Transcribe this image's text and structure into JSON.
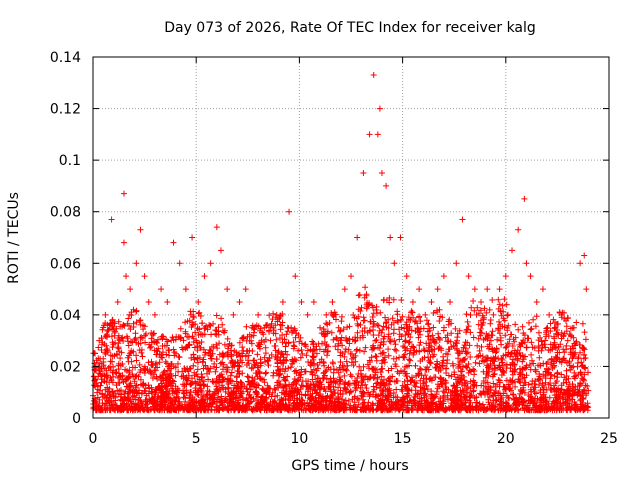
{
  "chart_data": {
    "type": "scatter",
    "title": "Day 073 of 2026, Rate Of TEC Index for receiver kalg",
    "xlabel": "GPS time / hours",
    "ylabel": "ROTI / TECUs",
    "xlim": [
      0,
      25
    ],
    "ylim": [
      0,
      0.14
    ],
    "x_ticks": [
      "0",
      "5",
      "10",
      "15",
      "20",
      "25"
    ],
    "y_ticks": [
      "0",
      "0.02",
      "0.04",
      "0.06",
      "0.08",
      "0.1",
      "0.12",
      "0.14"
    ],
    "grid": true,
    "marker": "+",
    "series": [
      {
        "name": "ROTI",
        "color": "#ff0000",
        "x": [
          0.1,
          0.3,
          0.6,
          0.9,
          1.2,
          1.5,
          1.5,
          1.6,
          1.8,
          2.1,
          2.3,
          2.5,
          2.7,
          3.0,
          3.3,
          3.6,
          3.9,
          4.2,
          4.5,
          4.8,
          5.1,
          5.4,
          5.7,
          6.0,
          6.2,
          6.5,
          6.8,
          7.1,
          7.4,
          7.7,
          8.0,
          8.3,
          8.6,
          8.9,
          9.2,
          9.5,
          9.6,
          9.8,
          10.1,
          10.4,
          10.7,
          11.0,
          11.3,
          11.6,
          11.9,
          12.2,
          12.5,
          12.8,
          13.1,
          13.4,
          13.6,
          13.8,
          13.9,
          14.0,
          14.2,
          14.4,
          14.6,
          14.9,
          15.2,
          15.5,
          15.8,
          16.1,
          16.4,
          16.7,
          17.0,
          17.3,
          17.6,
          17.9,
          18.2,
          18.5,
          18.8,
          19.1,
          19.4,
          19.7,
          20.0,
          20.3,
          20.6,
          20.9,
          21.0,
          21.2,
          21.5,
          21.8,
          22.1,
          22.4,
          22.7,
          23.0,
          23.3,
          23.6,
          23.8,
          23.9
        ],
        "y": [
          0.025,
          0.03,
          0.04,
          0.077,
          0.045,
          0.087,
          0.068,
          0.055,
          0.05,
          0.06,
          0.073,
          0.055,
          0.045,
          0.04,
          0.05,
          0.045,
          0.068,
          0.06,
          0.05,
          0.07,
          0.045,
          0.055,
          0.06,
          0.074,
          0.065,
          0.05,
          0.04,
          0.045,
          0.05,
          0.035,
          0.04,
          0.035,
          0.03,
          0.04,
          0.045,
          0.08,
          0.035,
          0.055,
          0.045,
          0.04,
          0.045,
          0.035,
          0.04,
          0.045,
          0.035,
          0.05,
          0.055,
          0.07,
          0.095,
          0.11,
          0.133,
          0.11,
          0.12,
          0.095,
          0.09,
          0.07,
          0.06,
          0.07,
          0.055,
          0.045,
          0.05,
          0.04,
          0.045,
          0.05,
          0.055,
          0.045,
          0.06,
          0.077,
          0.055,
          0.05,
          0.045,
          0.05,
          0.04,
          0.05,
          0.055,
          0.065,
          0.073,
          0.085,
          0.06,
          0.055,
          0.045,
          0.05,
          0.04,
          0.035,
          0.04,
          0.03,
          0.035,
          0.06,
          0.063,
          0.05
        ]
      }
    ]
  }
}
